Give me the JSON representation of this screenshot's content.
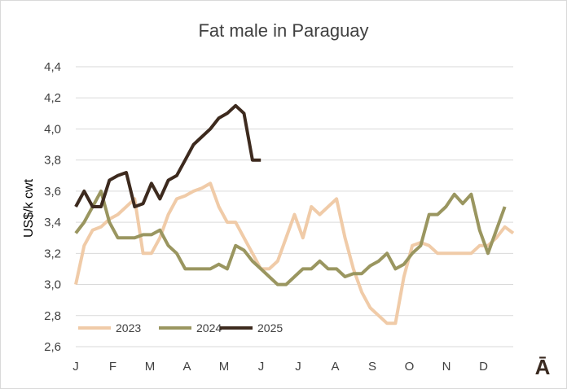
{
  "chart_data": {
    "type": "line",
    "title": "Fat male in Paraguay",
    "ylabel": "US$/k cwt",
    "xlabel": "",
    "ylim": [
      2.6,
      4.4
    ],
    "yticks": [
      "2,6",
      "2,8",
      "3,0",
      "3,2",
      "3,4",
      "3,6",
      "3,8",
      "4,0",
      "4,2",
      "4,4"
    ],
    "ytick_values": [
      2.6,
      2.8,
      3.0,
      3.2,
      3.4,
      3.6,
      3.8,
      4.0,
      4.2,
      4.4
    ],
    "xtick_labels": [
      "J",
      "F",
      "M",
      "A",
      "M",
      "J",
      "J",
      "A",
      "S",
      "O",
      "N",
      "D"
    ],
    "x_range_weeks": [
      0,
      52
    ],
    "grid": true,
    "legend_position": "bottom-left",
    "series": [
      {
        "name": "2023",
        "color": "#f0cba8",
        "values": [
          3.0,
          3.25,
          3.35,
          3.37,
          3.42,
          3.45,
          3.5,
          3.55,
          3.2,
          3.2,
          3.3,
          3.45,
          3.55,
          3.57,
          3.6,
          3.62,
          3.65,
          3.5,
          3.4,
          3.4,
          3.3,
          3.2,
          3.1,
          3.1,
          3.15,
          3.3,
          3.45,
          3.3,
          3.5,
          3.45,
          3.5,
          3.55,
          3.3,
          3.1,
          2.95,
          2.85,
          2.8,
          2.75,
          2.75,
          3.05,
          3.25,
          3.27,
          3.25,
          3.2,
          3.2,
          3.2,
          3.2,
          3.2,
          3.25,
          3.25,
          3.3,
          3.37,
          3.33
        ]
      },
      {
        "name": "2024",
        "color": "#9a9660",
        "values": [
          3.33,
          3.4,
          3.5,
          3.6,
          3.4,
          3.3,
          3.3,
          3.3,
          3.32,
          3.32,
          3.35,
          3.25,
          3.2,
          3.1,
          3.1,
          3.1,
          3.1,
          3.13,
          3.1,
          3.25,
          3.22,
          3.15,
          3.1,
          3.05,
          3.0,
          3.0,
          3.05,
          3.1,
          3.1,
          3.15,
          3.1,
          3.1,
          3.05,
          3.07,
          3.07,
          3.12,
          3.15,
          3.2,
          3.1,
          3.13,
          3.2,
          3.25,
          3.45,
          3.45,
          3.5,
          3.58,
          3.52,
          3.58,
          3.35,
          3.2,
          3.35,
          3.5
        ]
      },
      {
        "name": "2025",
        "color": "#3d2a1e",
        "values": [
          3.5,
          3.6,
          3.5,
          3.5,
          3.67,
          3.7,
          3.72,
          3.5,
          3.52,
          3.65,
          3.55,
          3.67,
          3.7,
          3.8,
          3.9,
          3.95,
          4.0,
          4.07,
          4.1,
          4.15,
          4.1,
          3.8,
          3.8
        ]
      }
    ]
  },
  "logo_text": "Ā"
}
